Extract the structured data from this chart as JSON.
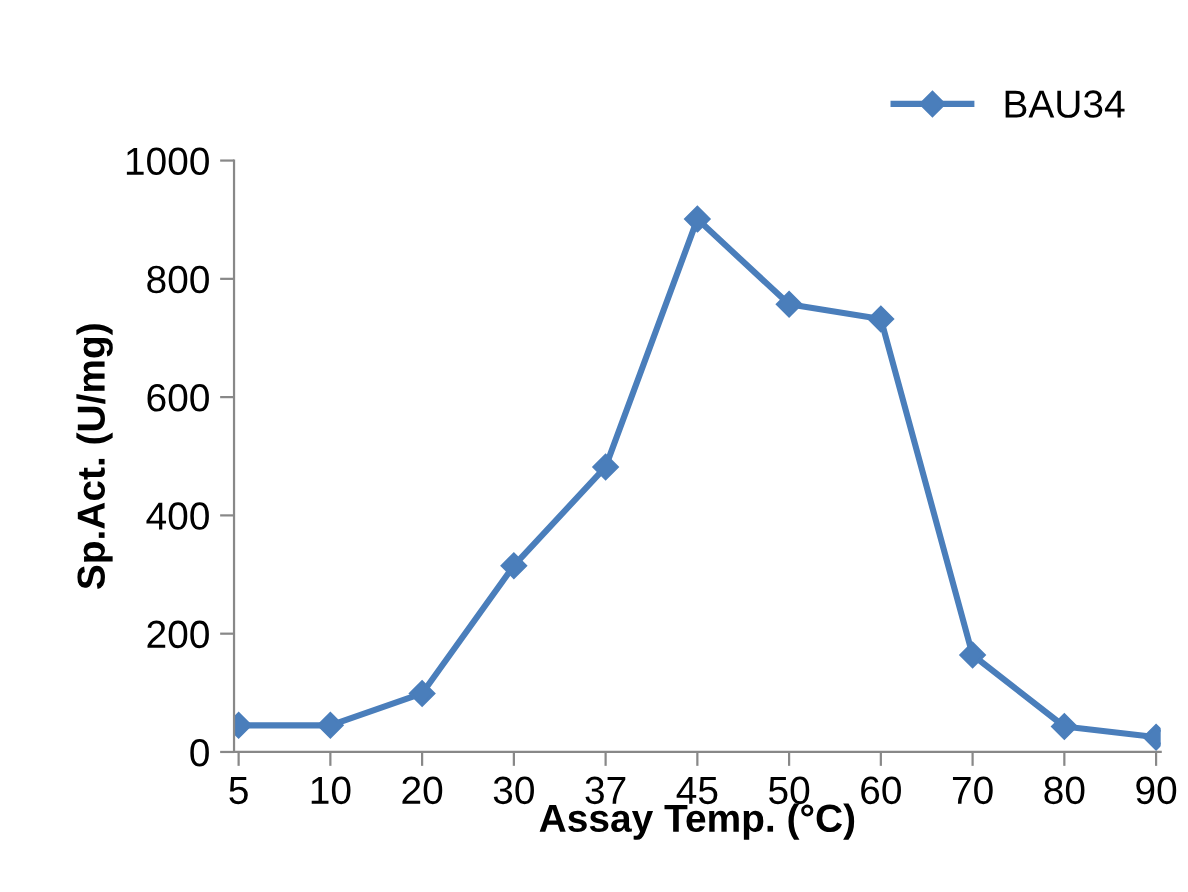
{
  "chart_data": {
    "type": "line",
    "xlabel": "Assay Temp. (°C)",
    "ylabel": "Sp.Act. (U/mg)",
    "categories": [
      "5",
      "10",
      "20",
      "30",
      "37",
      "45",
      "50",
      "60",
      "70",
      "80",
      "90"
    ],
    "series": [
      {
        "name": "BAU34",
        "color": "#4a7ebb",
        "values": [
          45,
          45,
          99,
          315,
          482,
          901,
          757,
          732,
          164,
          43,
          25
        ]
      }
    ],
    "ylim": [
      0,
      1000
    ],
    "yticks": [
      0,
      200,
      400,
      600,
      800,
      1000
    ],
    "grid": false,
    "legend": "top right",
    "marker": "diamond",
    "line_style": "solid"
  }
}
